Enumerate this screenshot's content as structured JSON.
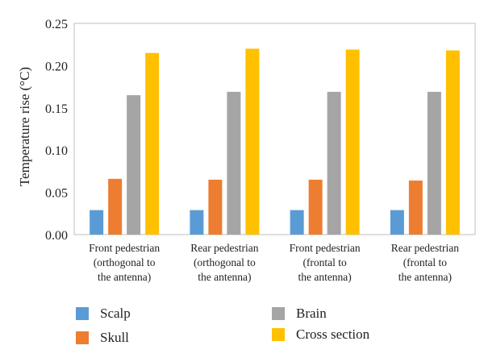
{
  "chart_data": {
    "type": "bar",
    "title": "",
    "xlabel": "",
    "ylabel": "Temperature rise (°C)",
    "ylim": [
      0,
      0.25
    ],
    "yticks": [
      "0.00",
      "0.05",
      "0.10",
      "0.15",
      "0.20",
      "0.25"
    ],
    "categories": [
      [
        "Front pedestrian",
        "(orthogonal to",
        "the antenna)"
      ],
      [
        "Rear pedestrian",
        "(orthogonal to",
        "the antenna)"
      ],
      [
        "Front pedestrian",
        "(frontal to",
        "the antenna)"
      ],
      [
        "Rear pedestrian",
        "(frontal to",
        "the antenna)"
      ]
    ],
    "series": [
      {
        "name": "Scalp",
        "color": "#5b9bd5",
        "values": [
          0.029,
          0.029,
          0.029,
          0.029
        ]
      },
      {
        "name": "Skull",
        "color": "#ed7d31",
        "values": [
          0.066,
          0.065,
          0.065,
          0.064
        ]
      },
      {
        "name": "Brain",
        "color": "#a5a5a5",
        "values": [
          0.165,
          0.169,
          0.169,
          0.169
        ]
      },
      {
        "name": "Cross section",
        "color": "#ffc000",
        "values": [
          0.215,
          0.22,
          0.219,
          0.218
        ]
      }
    ],
    "grid": false,
    "legend_position": "bottom"
  }
}
